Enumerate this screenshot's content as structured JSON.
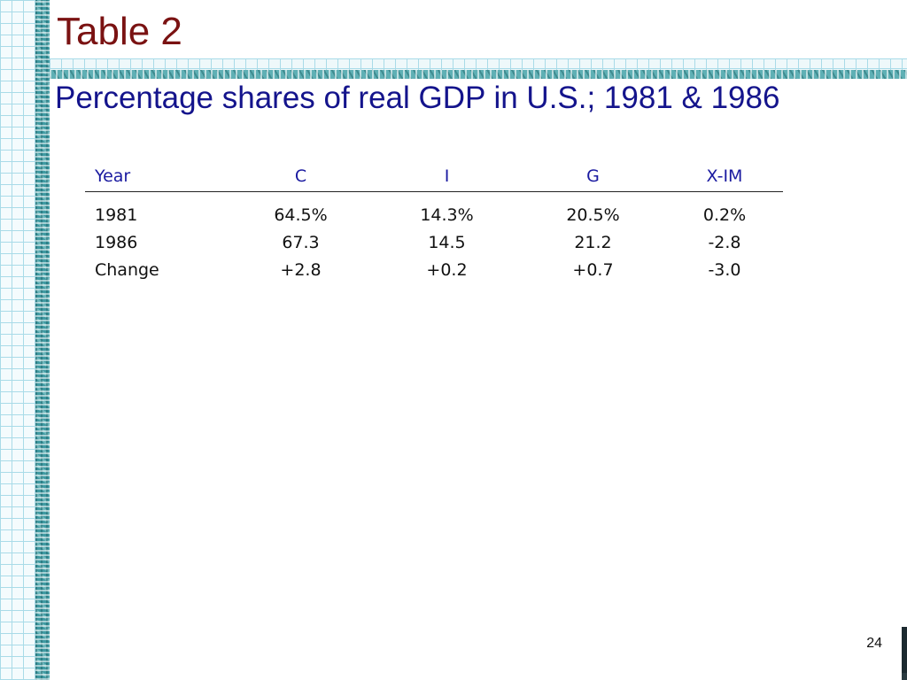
{
  "slide": {
    "title": "Table 2",
    "subtitle": "Percentage shares of real GDP in U.S.; 1981 & 1986",
    "page_number": "24"
  },
  "table": {
    "headers": [
      "Year",
      "C",
      "I",
      "G",
      "X-IM"
    ],
    "rows": [
      [
        "1981",
        "64.5%",
        "14.3%",
        "20.5%",
        "0.2%"
      ],
      [
        "1986",
        "67.3",
        "14.5",
        "21.2",
        "-2.8"
      ],
      [
        "Change",
        "+2.8",
        "+0.2",
        "+0.7",
        "-3.0"
      ]
    ]
  },
  "colors": {
    "title": "#7a1212",
    "subtitle": "#14148c",
    "header_text": "#1a1aa0",
    "accent_teal": "#3f9aa2"
  }
}
